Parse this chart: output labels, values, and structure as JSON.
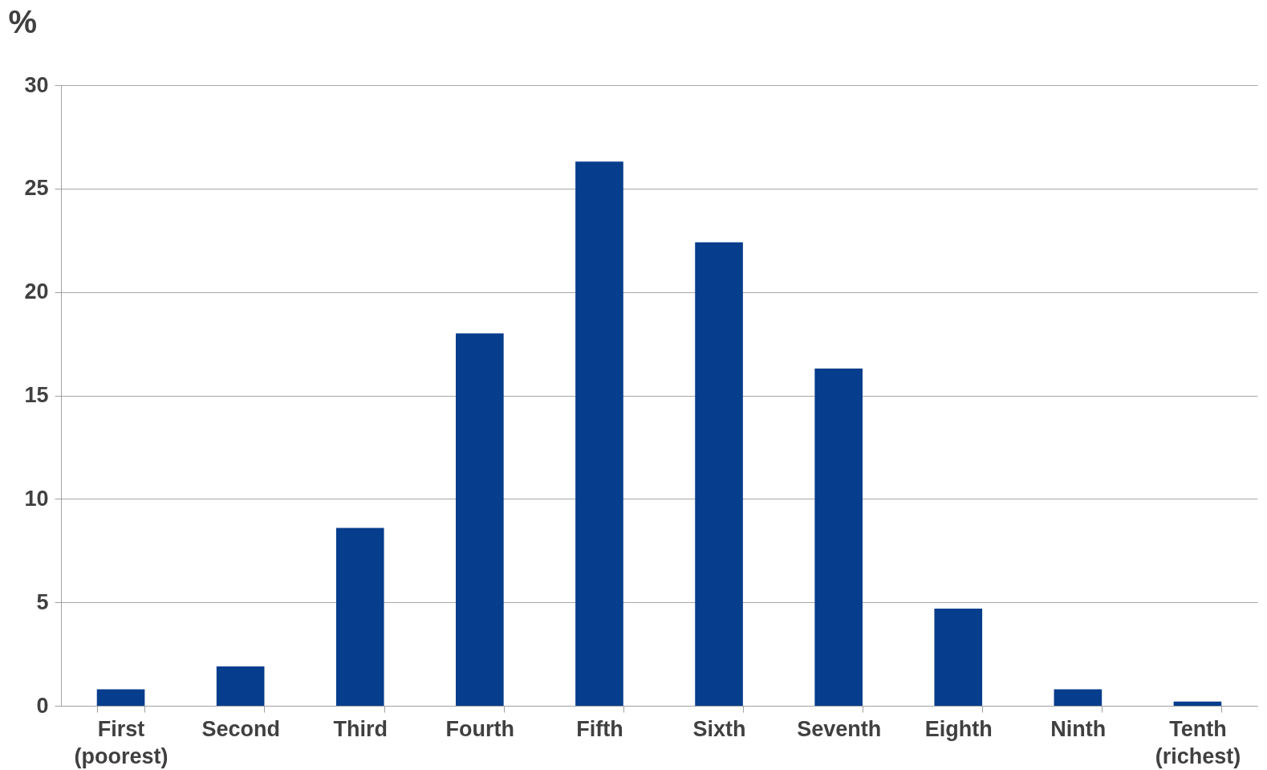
{
  "chart_data": {
    "type": "bar",
    "ylabel": "%",
    "categories": [
      "First (poorest)",
      "Second",
      "Third",
      "Fourth",
      "Fifth",
      "Sixth",
      "Seventh",
      "Eighth",
      "Ninth",
      "Tenth (richest)"
    ],
    "values": [
      0.8,
      1.9,
      8.6,
      18.0,
      26.3,
      22.4,
      16.3,
      4.7,
      0.8,
      0.2
    ],
    "color": "#063d8c",
    "ylim": [
      0,
      30
    ],
    "yticks": [
      0,
      5,
      10,
      15,
      20,
      25,
      30
    ],
    "grid": "y"
  }
}
